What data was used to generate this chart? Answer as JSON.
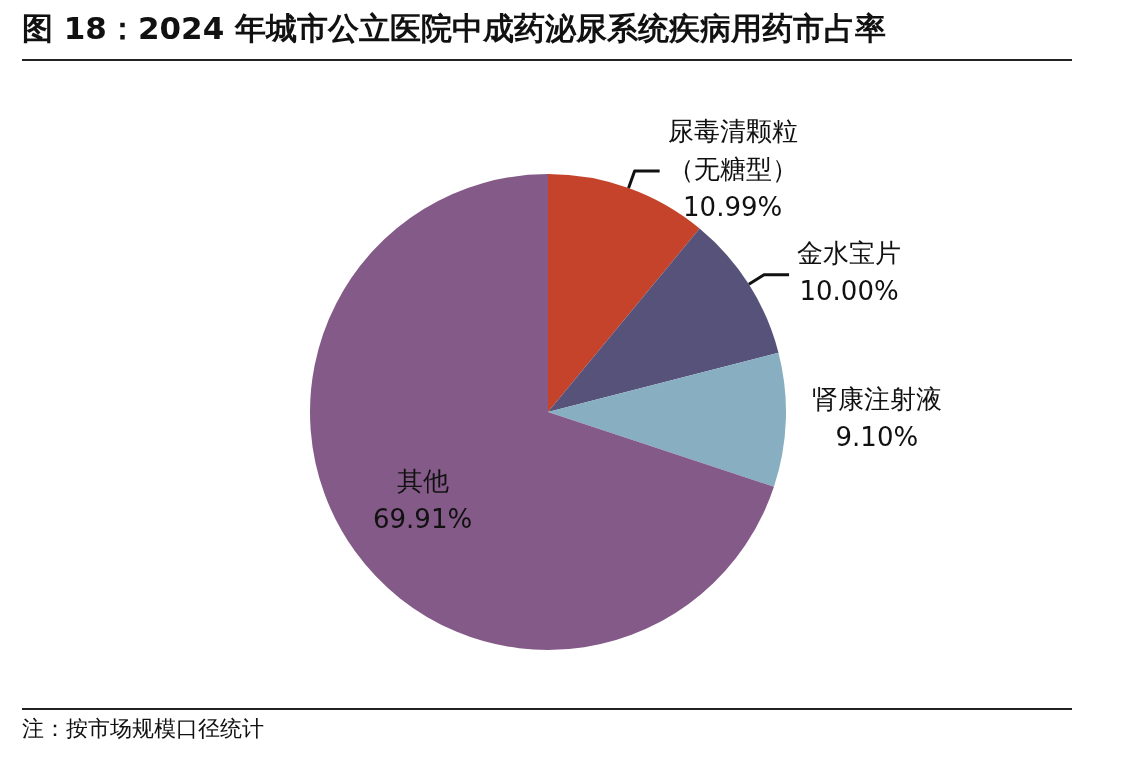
{
  "chart_data": {
    "type": "pie",
    "title": "图 18：2024 年城市公立医院中成药泌尿系统疾病用药市占率",
    "categories": [
      "尿毒清颗粒（无糖型）",
      "金水宝片",
      "肾康注射液",
      "其他"
    ],
    "values": [
      10.99,
      10.0,
      9.1,
      69.91
    ],
    "value_labels": [
      "10.99%",
      "10.00%",
      "9.10%",
      "69.91%"
    ],
    "colors": [
      "#c4432a",
      "#56527a",
      "#87aec1",
      "#845a88"
    ],
    "legend": false,
    "annotations": [
      "注：按市场规模口径统计"
    ]
  }
}
